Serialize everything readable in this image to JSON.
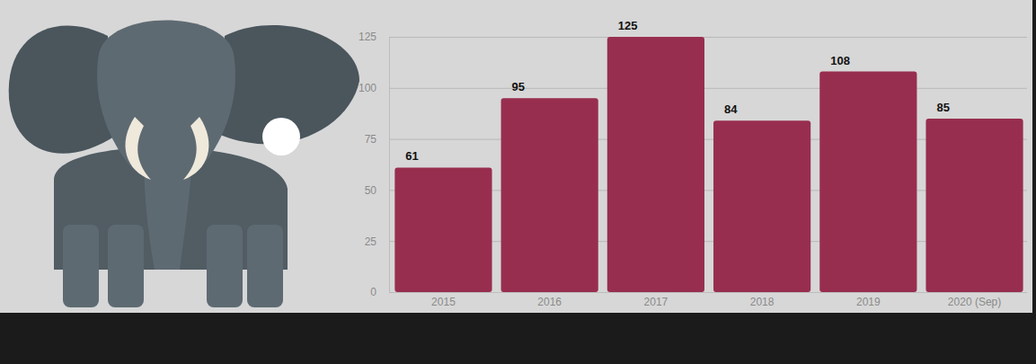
{
  "chart_data": {
    "type": "bar",
    "categories": [
      "2015",
      "2016",
      "2017",
      "2018",
      "2019",
      "2020 (Sep)"
    ],
    "values": [
      61,
      95,
      125,
      84,
      108,
      85
    ],
    "color": "#982e4f",
    "ylim": [
      0,
      125
    ],
    "yticks": [
      0,
      25,
      50,
      75,
      100,
      125
    ],
    "grid": true,
    "data_labels": true
  }
}
